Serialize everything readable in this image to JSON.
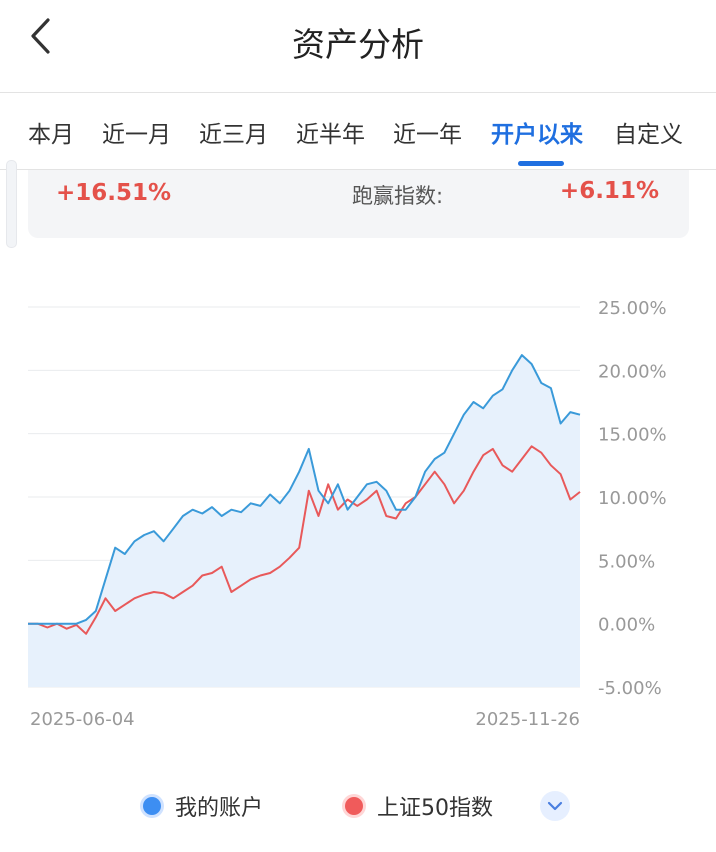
{
  "header": {
    "title": "资产分析"
  },
  "tabs": [
    {
      "label": "本月",
      "active": false
    },
    {
      "label": "近一月",
      "active": false
    },
    {
      "label": "近三月",
      "active": false
    },
    {
      "label": "近半年",
      "active": false
    },
    {
      "label": "近一年",
      "active": false
    },
    {
      "label": "开户以来",
      "active": true
    },
    {
      "label": "自定义",
      "active": false
    }
  ],
  "summary": {
    "return_value": "+16.51%",
    "beat_label": "跑赢指数:",
    "beat_value": "+6.11%"
  },
  "legend": {
    "account_label": "我的账户",
    "index_label": "上证50指数"
  },
  "colors": {
    "accent": "#1f6fe0",
    "positive": "#e4514a",
    "account_line": "#3a9ad9",
    "index_line": "#e8595a"
  },
  "chart_data": {
    "type": "line",
    "x_start_label": "2025-06-04",
    "x_end_label": "2025-11-26",
    "ylim": [
      -5,
      25
    ],
    "yticks": [
      "25.00%",
      "20.00%",
      "15.00%",
      "10.00%",
      "5.00%",
      "0.00%",
      "-5.00%"
    ],
    "grid": true,
    "legend_position": "bottom",
    "series": [
      {
        "name": "我的账户",
        "values": [
          0,
          0,
          0,
          0,
          0,
          0,
          0.3,
          1,
          3.5,
          6,
          5.5,
          6.5,
          7,
          7.3,
          6.5,
          7.5,
          8.5,
          9,
          8.7,
          9.2,
          8.5,
          9,
          8.8,
          9.5,
          9.3,
          10.2,
          9.5,
          10.5,
          12,
          13.8,
          10.5,
          9.5,
          11,
          9,
          10,
          11,
          11.2,
          10.5,
          9,
          9,
          10,
          12,
          13,
          13.5,
          15,
          16.5,
          17.5,
          17,
          18,
          18.5,
          20,
          21.2,
          20.5,
          19,
          18.6,
          15.8,
          16.7,
          16.5
        ]
      },
      {
        "name": "上证50指数",
        "values": [
          0,
          0,
          -0.3,
          0,
          -0.4,
          -0.1,
          -0.8,
          0.5,
          2,
          1,
          1.5,
          2,
          2.3,
          2.5,
          2.4,
          2,
          2.5,
          3,
          3.8,
          4,
          4.5,
          2.5,
          3,
          3.5,
          3.8,
          4,
          4.5,
          5.2,
          6,
          10.5,
          8.5,
          11,
          9,
          9.8,
          9.3,
          9.8,
          10.5,
          8.5,
          8.3,
          9.5,
          10,
          11,
          12,
          11,
          9.5,
          10.5,
          12,
          13.3,
          13.8,
          12.5,
          12,
          13,
          14,
          13.5,
          12.5,
          11.8,
          9.8,
          10.4
        ]
      }
    ]
  }
}
